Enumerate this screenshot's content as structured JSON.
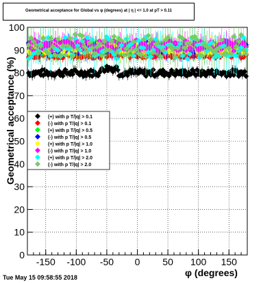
{
  "chart_data": {
    "type": "scatter",
    "title": "Geometrical acceptance for Global vs φ (degrees) at | η | <= 1.0 at pT > 0.11",
    "xlabel": "φ (degrees)",
    "ylabel": "Geometrical acceptance (%)",
    "xlim": [
      -180,
      180
    ],
    "ylim": [
      0,
      100
    ],
    "xticks": [
      -150,
      -100,
      -50,
      0,
      50,
      100,
      150
    ],
    "yticks": [
      0,
      10,
      20,
      30,
      40,
      50,
      60,
      70,
      80,
      90,
      100
    ],
    "grid": true,
    "legend_position": "left-middle",
    "series": [
      {
        "name": "(+) with p T/|q| > 0.1",
        "color": "#000000",
        "marker": "diamond",
        "x_range": [
          -178,
          178
        ],
        "x_step": 2,
        "level": 80,
        "spread": 1.5,
        "error": 1.5
      },
      {
        "name": "(-) with p T/|q| > 0.1",
        "color": "#ff0000",
        "marker": "diamond",
        "x_range": [
          -178,
          178
        ],
        "x_step": 2,
        "level": 88,
        "spread": 1.5,
        "error": 1.5
      },
      {
        "name": "(+) with p T/|q| > 0.5",
        "color": "#00ff00",
        "marker": "diamond",
        "x_range": [
          -178,
          178
        ],
        "x_step": 2,
        "level": 91,
        "spread": 2.5,
        "error": 3
      },
      {
        "name": "(-) with p T/|q| > 0.5",
        "color": "#0000ff",
        "marker": "diamond",
        "x_range": [
          -178,
          178
        ],
        "x_step": 2,
        "level": 91,
        "spread": 2.5,
        "error": 3
      },
      {
        "name": "(+) with p T/|q| > 1.0",
        "color": "#ffff00",
        "marker": "diamond",
        "x_range": [
          -178,
          178
        ],
        "x_step": 2,
        "level": 91,
        "spread": 2.5,
        "error": 3
      },
      {
        "name": "(-) with p T/|q| > 1.0",
        "color": "#ff00ff",
        "marker": "diamond",
        "x_range": [
          -178,
          178
        ],
        "x_step": 2,
        "level": 92,
        "spread": 2.5,
        "error": 3
      },
      {
        "name": "(+) with p T/|q| > 2.0",
        "color": "#00ffff",
        "marker": "diamond",
        "x_range": [
          -178,
          178
        ],
        "x_step": 4,
        "level": 91,
        "spread": 5,
        "error": 6
      },
      {
        "name": "(-) with p T/|q| > 2.0",
        "color": "#77cc66",
        "marker": "diamond",
        "x_range": [
          -178,
          178
        ],
        "x_step": 4,
        "level": 92,
        "spread": 5,
        "error": 6
      }
    ]
  },
  "footer": {
    "timestamp": "Tue May 15 09:58:55 2018"
  }
}
